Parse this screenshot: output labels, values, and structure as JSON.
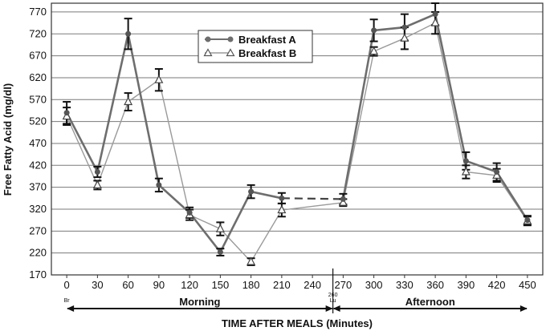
{
  "chart_data": {
    "type": "line",
    "title": "",
    "xlabel": "TIME AFTER MEALS (Minutes)",
    "ylabel": "Free Fatty Acid (mg/dl)",
    "ylim": [
      170,
      790
    ],
    "yticks": [
      170,
      220,
      270,
      320,
      370,
      420,
      470,
      520,
      570,
      620,
      670,
      720,
      770
    ],
    "xlim": [
      -15,
      465
    ],
    "x": [
      0,
      30,
      60,
      90,
      120,
      150,
      180,
      210,
      240,
      270,
      300,
      330,
      360,
      390,
      420,
      450
    ],
    "x_tick_labels": [
      "0",
      "30",
      "60",
      "90",
      "120",
      "150",
      "180",
      "210",
      "240",
      "270",
      "300",
      "330",
      "360",
      "390",
      "420",
      "450"
    ],
    "x_tick_sublabels": [
      {
        "x": 0,
        "text": "Br"
      },
      {
        "x": 260,
        "text": "Lu"
      }
    ],
    "marker_label": {
      "x": 260,
      "text": "260"
    },
    "periods": [
      {
        "label": "Morning",
        "from": 0,
        "to": 260
      },
      {
        "label": "Afternoon",
        "from": 260,
        "to": 450
      }
    ],
    "series": [
      {
        "name": "Breakfast A",
        "marker": "circle",
        "color": "#6e6e6e",
        "segments": [
          [
            [
              0,
              540
            ],
            [
              30,
              405
            ],
            [
              60,
              720
            ],
            [
              90,
              375
            ],
            [
              120,
              312
            ],
            [
              150,
              222
            ],
            [
              180,
              360
            ],
            [
              210,
              345
            ]
          ],
          [
            [
              270,
              343
            ],
            [
              300,
              728
            ],
            [
              330,
              735
            ],
            [
              360,
              765
            ],
            [
              390,
              430
            ],
            [
              420,
              405
            ],
            [
              450,
              295
            ]
          ]
        ],
        "gap_segment": [
          [
            210,
            345
          ],
          [
            270,
            343
          ]
        ],
        "errors": [
          [
            0,
            25
          ],
          [
            30,
            12
          ],
          [
            60,
            35
          ],
          [
            90,
            15
          ],
          [
            120,
            12
          ],
          [
            150,
            8
          ],
          [
            180,
            15
          ],
          [
            210,
            12
          ],
          [
            270,
            12
          ],
          [
            300,
            25
          ],
          [
            330,
            30
          ],
          [
            360,
            25
          ],
          [
            390,
            20
          ],
          [
            420,
            20
          ],
          [
            450,
            10
          ]
        ]
      },
      {
        "name": "Breakfast B",
        "marker": "triangle",
        "color": "#9a9a9a",
        "segments": [
          [
            [
              0,
              532
            ],
            [
              30,
              375
            ],
            [
              60,
              565
            ],
            [
              90,
              615
            ],
            [
              120,
              307
            ],
            [
              150,
              275
            ],
            [
              180,
              200
            ],
            [
              210,
              318
            ],
            [
              270,
              335
            ],
            [
              300,
              680
            ],
            [
              330,
              710
            ],
            [
              360,
              745
            ],
            [
              390,
              405
            ],
            [
              420,
              397
            ],
            [
              450,
              293
            ]
          ]
        ],
        "errors": [
          [
            0,
            20
          ],
          [
            30,
            10
          ],
          [
            60,
            20
          ],
          [
            90,
            25
          ],
          [
            120,
            12
          ],
          [
            150,
            15
          ],
          [
            180,
            8
          ],
          [
            210,
            15
          ],
          [
            270,
            8
          ],
          [
            300,
            10
          ],
          [
            330,
            25
          ],
          [
            360,
            25
          ],
          [
            390,
            15
          ],
          [
            420,
            15
          ],
          [
            450,
            10
          ]
        ]
      }
    ],
    "legend": {
      "position": "top-center"
    }
  },
  "colors": {
    "line_a": "#6e6e6e",
    "line_b": "#9a9a9a",
    "error_bar": "#111111",
    "grid": "#7a7a7a"
  }
}
